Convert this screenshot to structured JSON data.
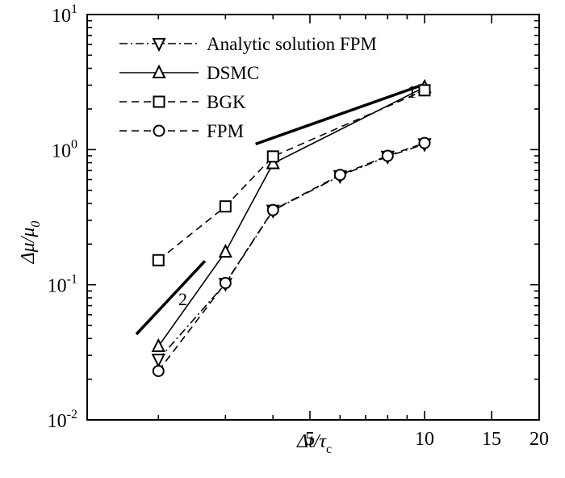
{
  "chart_data": {
    "type": "line",
    "x_scale": "log",
    "y_scale": "log",
    "xlim": [
      1.3,
      20
    ],
    "ylim": [
      0.01,
      10
    ],
    "grid": false,
    "legend_position": "top-left",
    "xlabel": {
      "main": "Δt/τ",
      "sub": "c"
    },
    "ylabel": {
      "main": "Δμ/μ",
      "sub": "0"
    },
    "x_ticks": [
      {
        "value": 5,
        "label": "5"
      },
      {
        "value": 10,
        "label": "10"
      },
      {
        "value": 15,
        "label": "15"
      },
      {
        "value": 20,
        "label": "20"
      }
    ],
    "y_ticks": [
      {
        "value": 0.01,
        "base": "10",
        "exp": "-2"
      },
      {
        "value": 0.1,
        "base": "10",
        "exp": "-1"
      },
      {
        "value": 1,
        "base": "10",
        "exp": "0"
      },
      {
        "value": 10,
        "base": "10",
        "exp": "1"
      }
    ],
    "series": [
      {
        "name": "Analytic solution FPM",
        "marker": "triangle-down",
        "line": "dashdot",
        "x": [
          2,
          3,
          4,
          6,
          8,
          10
        ],
        "y": [
          0.028,
          0.102,
          0.355,
          0.64,
          0.89,
          1.1
        ]
      },
      {
        "name": "DSMC",
        "marker": "triangle-up",
        "line": "solid",
        "x": [
          2,
          3,
          4,
          10
        ],
        "y": [
          0.035,
          0.175,
          0.79,
          2.9
        ]
      },
      {
        "name": "BGK",
        "marker": "square",
        "line": "dashed",
        "x": [
          2,
          3,
          4,
          10
        ],
        "y": [
          0.152,
          0.38,
          0.89,
          2.75
        ]
      },
      {
        "name": "FPM",
        "marker": "circle",
        "line": "dashed",
        "x": [
          2,
          3,
          4,
          6,
          8,
          10
        ],
        "y": [
          0.023,
          0.103,
          0.357,
          0.65,
          0.9,
          1.12
        ]
      }
    ],
    "slope_indicators": [
      {
        "label": "1",
        "x": [
          3.6,
          10
        ],
        "y": [
          1.1,
          3.05
        ]
      },
      {
        "label": "2",
        "x": [
          1.75,
          2.65
        ],
        "y": [
          0.043,
          0.15
        ]
      }
    ]
  }
}
